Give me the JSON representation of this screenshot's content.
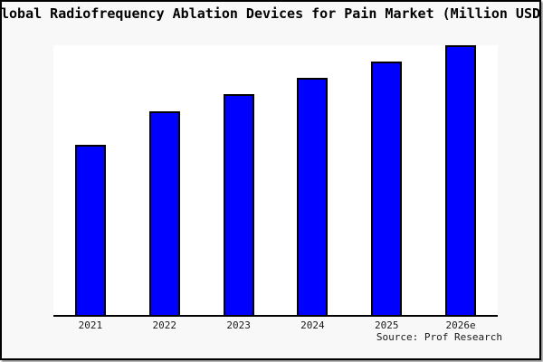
{
  "title": "Global Radiofrequency Ablation Devices for Pain Market (Million USD)",
  "source": "Source: Prof Research",
  "colors": {
    "bar_fill": "#0000ff",
    "bar_border": "#000000",
    "axis": "#000000",
    "figure_bg": "#f8f8f8",
    "plot_bg": "#ffffff",
    "frame_border": "#000000"
  },
  "chart_data": {
    "type": "bar",
    "title": "Global Radiofrequency Ablation Devices for Pain Market (Million USD)",
    "categories": [
      "2021",
      "2022",
      "2023",
      "2024",
      "2025",
      "2026e"
    ],
    "values": [
      63,
      75.5,
      82,
      88,
      94,
      100
    ],
    "values_note": "No y-axis ticks, gridlines or data labels are shown in the image; values are relative bar heights estimated with the tallest (2026e) bar = 100.",
    "xlabel": "",
    "ylabel": "",
    "ylim": [
      0,
      100
    ],
    "grid": false,
    "legend": false,
    "bar_color": "#0000ff",
    "source_annotation": "Source: Prof Research"
  }
}
